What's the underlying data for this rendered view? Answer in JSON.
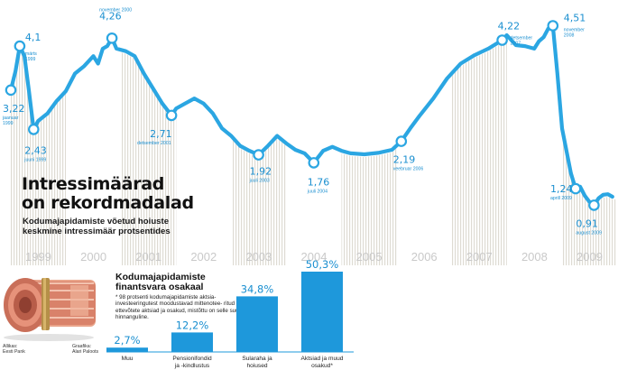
{
  "header": {
    "title_line1": "Intressimäärad",
    "title_line2": "on rekordmadalad",
    "subtitle_line1": "Kodumajapidamiste võetud hoiuste",
    "subtitle_line2": "keskmine intressimäär protsentides"
  },
  "bar_panel": {
    "title_line1": "Kodumajapidamiste",
    "title_line2": "finantsvara osakaal",
    "footnote": "* 98 protsenti kodumajapidamiste aktsia- investeeringutest moodustavad mittenotee- ritud ettevõtete aktsiad ja osakud, mistõttu on selle suurus hinnanguline."
  },
  "credits": {
    "source_line1": "Allikas:",
    "source_line2": "Eesti Pank",
    "graphics_line1": "Graafika:",
    "graphics_line2": "Alari Paloots"
  },
  "colors": {
    "line": "#2ba6e2",
    "bar": "#1e98db",
    "year_text": "#c9c9c9",
    "label_text": "#1a8fd0",
    "grid_band": "#e9e7e1"
  },
  "chart_data": [
    {
      "type": "line",
      "title": "Intressimäärad on rekordmadalad",
      "subtitle": "Kodumajapidamiste võetud hoiuste keskmine intressimäär protsentides",
      "x_axis": {
        "type": "date",
        "tick_labels": [
          "1999",
          "2000",
          "2001",
          "2002",
          "2003",
          "2004",
          "2005",
          "2006",
          "2007",
          "2008",
          "2009"
        ]
      },
      "grid": false,
      "ylim": [
        0.5,
        4.7
      ],
      "series": [
        {
          "points": [
            {
              "x": "1999-01-01",
              "y": 3.22
            },
            {
              "x": "1999-02-01",
              "y": 3.6
            },
            {
              "x": "1999-03-01",
              "y": 4.1
            },
            {
              "x": "1999-04-01",
              "y": 3.9
            },
            {
              "x": "1999-05-01",
              "y": 3.2
            },
            {
              "x": "1999-06-01",
              "y": 2.43
            },
            {
              "x": "1999-07-01",
              "y": 2.6
            },
            {
              "x": "1999-09-01",
              "y": 2.75
            },
            {
              "x": "1999-11-01",
              "y": 3.0
            },
            {
              "x": "2000-01-01",
              "y": 3.2
            },
            {
              "x": "2000-03-01",
              "y": 3.55
            },
            {
              "x": "2000-05-01",
              "y": 3.7
            },
            {
              "x": "2000-07-01",
              "y": 3.9
            },
            {
              "x": "2000-08-01",
              "y": 3.75
            },
            {
              "x": "2000-09-01",
              "y": 4.05
            },
            {
              "x": "2000-10-01",
              "y": 4.1
            },
            {
              "x": "2000-11-01",
              "y": 4.26
            },
            {
              "x": "2000-12-01",
              "y": 4.05
            },
            {
              "x": "2001-02-01",
              "y": 4.0
            },
            {
              "x": "2001-04-01",
              "y": 3.9
            },
            {
              "x": "2001-06-01",
              "y": 3.55
            },
            {
              "x": "2001-08-01",
              "y": 3.25
            },
            {
              "x": "2001-10-01",
              "y": 2.95
            },
            {
              "x": "2001-12-01",
              "y": 2.71
            },
            {
              "x": "2002-01-01",
              "y": 2.85
            },
            {
              "x": "2002-03-01",
              "y": 2.95
            },
            {
              "x": "2002-05-01",
              "y": 3.05
            },
            {
              "x": "2002-07-01",
              "y": 2.95
            },
            {
              "x": "2002-09-01",
              "y": 2.75
            },
            {
              "x": "2002-11-01",
              "y": 2.45
            },
            {
              "x": "2003-01-01",
              "y": 2.3
            },
            {
              "x": "2003-03-01",
              "y": 2.1
            },
            {
              "x": "2003-05-01",
              "y": 2.0
            },
            {
              "x": "2003-07-01",
              "y": 1.92
            },
            {
              "x": "2003-09-01",
              "y": 2.1
            },
            {
              "x": "2003-11-01",
              "y": 2.3
            },
            {
              "x": "2004-01-01",
              "y": 2.15
            },
            {
              "x": "2004-03-01",
              "y": 2.02
            },
            {
              "x": "2004-05-01",
              "y": 1.95
            },
            {
              "x": "2004-07-01",
              "y": 1.76
            },
            {
              "x": "2004-09-01",
              "y": 2.0
            },
            {
              "x": "2004-11-01",
              "y": 2.08
            },
            {
              "x": "2005-01-01",
              "y": 2.0
            },
            {
              "x": "2005-03-01",
              "y": 1.95
            },
            {
              "x": "2005-06-01",
              "y": 1.93
            },
            {
              "x": "2005-09-01",
              "y": 1.96
            },
            {
              "x": "2005-12-01",
              "y": 2.02
            },
            {
              "x": "2006-02-01",
              "y": 2.19
            },
            {
              "x": "2006-04-01",
              "y": 2.45
            },
            {
              "x": "2006-06-01",
              "y": 2.7
            },
            {
              "x": "2006-09-01",
              "y": 3.05
            },
            {
              "x": "2006-12-01",
              "y": 3.45
            },
            {
              "x": "2007-03-01",
              "y": 3.75
            },
            {
              "x": "2007-06-01",
              "y": 3.92
            },
            {
              "x": "2007-09-01",
              "y": 4.05
            },
            {
              "x": "2007-12-01",
              "y": 4.22
            },
            {
              "x": "2008-01-01",
              "y": 4.32
            },
            {
              "x": "2008-03-01",
              "y": 4.12
            },
            {
              "x": "2008-05-01",
              "y": 4.1
            },
            {
              "x": "2008-07-01",
              "y": 4.05
            },
            {
              "x": "2008-08-01",
              "y": 4.2
            },
            {
              "x": "2008-09-01",
              "y": 4.28
            },
            {
              "x": "2008-10-01",
              "y": 4.45
            },
            {
              "x": "2008-11-01",
              "y": 4.51
            },
            {
              "x": "2008-12-01",
              "y": 3.55
            },
            {
              "x": "2009-01-01",
              "y": 2.45
            },
            {
              "x": "2009-03-01",
              "y": 1.55
            },
            {
              "x": "2009-04-01",
              "y": 1.24
            },
            {
              "x": "2009-05-01",
              "y": 1.28
            },
            {
              "x": "2009-06-01",
              "y": 1.1
            },
            {
              "x": "2009-07-01",
              "y": 0.98
            },
            {
              "x": "2009-08-01",
              "y": 0.91
            },
            {
              "x": "2009-09-01",
              "y": 1.05
            },
            {
              "x": "2009-10-01",
              "y": 1.12
            },
            {
              "x": "2009-11-01",
              "y": 1.13
            },
            {
              "x": "2009-12-01",
              "y": 1.08
            }
          ]
        }
      ],
      "annotations": [
        {
          "x": "1999-01-01",
          "y": 3.22,
          "value": "3,22",
          "note_line1": "jaanuar",
          "note_line2": "1999"
        },
        {
          "x": "1999-03-01",
          "y": 4.1,
          "value": "4,1",
          "note_line1": "märts",
          "note_line2": "1999"
        },
        {
          "x": "1999-06-01",
          "y": 2.43,
          "value": "2,43",
          "note_line1": "juuni 1999",
          "note_line2": ""
        },
        {
          "x": "2000-11-01",
          "y": 4.26,
          "value": "4,26",
          "note_line1": "november 2000",
          "note_line2": ""
        },
        {
          "x": "2001-12-01",
          "y": 2.71,
          "value": "2,71",
          "note_line1": "detsember 2001",
          "note_line2": ""
        },
        {
          "x": "2003-07-01",
          "y": 1.92,
          "value": "1,92",
          "note_line1": "juuli 2003",
          "note_line2": ""
        },
        {
          "x": "2004-07-01",
          "y": 1.76,
          "value": "1,76",
          "note_line1": "juuli 2004",
          "note_line2": ""
        },
        {
          "x": "2006-02-01",
          "y": 2.19,
          "value": "2,19",
          "note_line1": "veebruar 2006",
          "note_line2": ""
        },
        {
          "x": "2007-12-01",
          "y": 4.22,
          "value": "4,22",
          "note_line1": "detsember",
          "note_line2": "2007"
        },
        {
          "x": "2008-11-01",
          "y": 4.51,
          "value": "4,51",
          "note_line1": "november",
          "note_line2": "2008"
        },
        {
          "x": "2009-04-01",
          "y": 1.24,
          "value": "1,24",
          "note_line1": "aprill 2009",
          "note_line2": ""
        },
        {
          "x": "2009-08-01",
          "y": 0.91,
          "value": "0,91",
          "note_line1": "august 2009",
          "note_line2": ""
        }
      ]
    },
    {
      "type": "bar",
      "title": "Kodumajapidamiste finantsvara osakaal",
      "categories": [
        {
          "line1": "Muu",
          "line2": ""
        },
        {
          "line1": "Pensionifondid",
          "line2": "ja -kindlustus"
        },
        {
          "line1": "Sularaha ja",
          "line2": "hoiused"
        },
        {
          "line1": "Aktsiad ja muud",
          "line2": "osakud*"
        }
      ],
      "values": [
        2.7,
        12.2,
        34.8,
        50.3
      ],
      "value_labels": [
        "2,7%",
        "12,2%",
        "34,8%",
        "50,3%"
      ],
      "ylim": [
        0,
        52
      ]
    }
  ]
}
